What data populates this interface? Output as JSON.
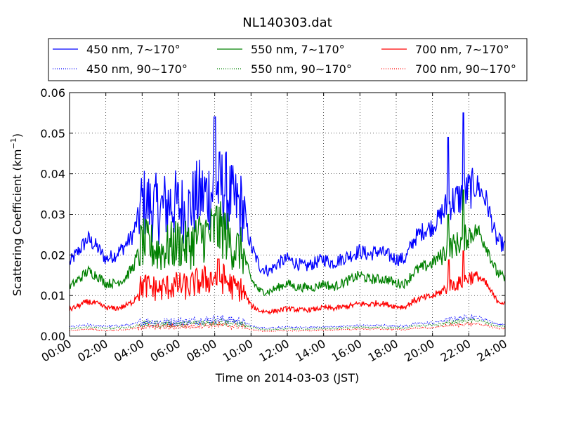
{
  "chart_data": {
    "type": "line",
    "title": "NL140303.dat",
    "xlabel": "Time on 2014-03-03 (JST)",
    "ylabel_main": "Scattering Coefficient (km",
    "ylabel_sup": "−1",
    "ylabel_end": ")",
    "xlim": [
      0,
      24
    ],
    "ylim": [
      0,
      0.06
    ],
    "x_ticks": [
      0,
      2,
      4,
      6,
      8,
      10,
      12,
      14,
      16,
      18,
      20,
      22,
      24
    ],
    "x_tick_labels": [
      "00:00",
      "02:00",
      "04:00",
      "06:00",
      "08:00",
      "10:00",
      "12:00",
      "14:00",
      "16:00",
      "18:00",
      "20:00",
      "22:00",
      "24:00"
    ],
    "y_ticks": [
      0,
      0.01,
      0.02,
      0.03,
      0.04,
      0.05,
      0.06
    ],
    "y_tick_labels": [
      "0.00",
      "0.01",
      "0.02",
      "0.03",
      "0.04",
      "0.05",
      "0.06"
    ],
    "grid": true,
    "legend_position": "top, above plot, 3 columns",
    "x": [
      0,
      0.5,
      1,
      1.5,
      2,
      2.5,
      3,
      3.5,
      4,
      4.5,
      5,
      5.5,
      6,
      6.5,
      7,
      7.5,
      8,
      8.5,
      9,
      9.5,
      10,
      10.5,
      11,
      11.5,
      12,
      12.5,
      13,
      13.5,
      14,
      14.5,
      15,
      15.5,
      16,
      16.5,
      17,
      17.5,
      18,
      18.5,
      19,
      19.5,
      20,
      20.5,
      21,
      21.5,
      22,
      22.5,
      23,
      23.5,
      24
    ],
    "series": [
      {
        "name": "450 nm, 7∼170°",
        "color": "#0000ff",
        "style": "solid",
        "values": [
          0.018,
          0.021,
          0.024,
          0.022,
          0.019,
          0.02,
          0.022,
          0.025,
          0.033,
          0.032,
          0.031,
          0.033,
          0.032,
          0.031,
          0.034,
          0.035,
          0.036,
          0.037,
          0.033,
          0.032,
          0.022,
          0.017,
          0.016,
          0.018,
          0.019,
          0.018,
          0.017,
          0.018,
          0.019,
          0.018,
          0.019,
          0.02,
          0.021,
          0.02,
          0.021,
          0.02,
          0.019,
          0.019,
          0.024,
          0.026,
          0.027,
          0.03,
          0.033,
          0.034,
          0.036,
          0.037,
          0.033,
          0.024,
          0.022
        ]
      },
      {
        "name": "450 nm, 90∼170°",
        "color": "#0000ff",
        "style": "dotted",
        "values": [
          0.0023,
          0.0025,
          0.0028,
          0.0026,
          0.0024,
          0.0025,
          0.0026,
          0.0029,
          0.0035,
          0.0036,
          0.0035,
          0.0036,
          0.0035,
          0.0036,
          0.0038,
          0.004,
          0.0042,
          0.0041,
          0.0038,
          0.0036,
          0.0026,
          0.002,
          0.002,
          0.0021,
          0.0022,
          0.0021,
          0.0021,
          0.0022,
          0.0023,
          0.0023,
          0.0024,
          0.0025,
          0.0026,
          0.0026,
          0.0027,
          0.0026,
          0.0025,
          0.0025,
          0.003,
          0.0032,
          0.0033,
          0.0037,
          0.0042,
          0.0044,
          0.0048,
          0.0046,
          0.004,
          0.003,
          0.0028
        ]
      },
      {
        "name": "550 nm, 7∼170°",
        "color": "#008000",
        "style": "solid",
        "values": [
          0.012,
          0.014,
          0.016,
          0.015,
          0.013,
          0.013,
          0.014,
          0.017,
          0.023,
          0.022,
          0.021,
          0.022,
          0.023,
          0.022,
          0.024,
          0.025,
          0.026,
          0.026,
          0.022,
          0.021,
          0.014,
          0.011,
          0.011,
          0.012,
          0.013,
          0.012,
          0.012,
          0.012,
          0.013,
          0.012,
          0.013,
          0.014,
          0.015,
          0.014,
          0.014,
          0.014,
          0.013,
          0.013,
          0.016,
          0.017,
          0.018,
          0.02,
          0.022,
          0.023,
          0.025,
          0.026,
          0.022,
          0.016,
          0.014
        ]
      },
      {
        "name": "550 nm, 90∼170°",
        "color": "#008000",
        "style": "dotted",
        "values": [
          0.0018,
          0.002,
          0.0022,
          0.0021,
          0.0019,
          0.002,
          0.0021,
          0.0023,
          0.003,
          0.003,
          0.0029,
          0.003,
          0.0029,
          0.003,
          0.0032,
          0.0033,
          0.0035,
          0.0034,
          0.0031,
          0.003,
          0.0021,
          0.0017,
          0.0016,
          0.0017,
          0.0018,
          0.0017,
          0.0017,
          0.0018,
          0.0019,
          0.0019,
          0.002,
          0.0021,
          0.0022,
          0.0021,
          0.0022,
          0.0021,
          0.002,
          0.002,
          0.0025,
          0.0026,
          0.0027,
          0.003,
          0.0034,
          0.0036,
          0.0039,
          0.0038,
          0.0033,
          0.0025,
          0.0023
        ]
      },
      {
        "name": "700 nm, 7∼170°",
        "color": "#ff0000",
        "style": "solid",
        "values": [
          0.0065,
          0.0075,
          0.0085,
          0.008,
          0.007,
          0.0068,
          0.0073,
          0.0085,
          0.0125,
          0.012,
          0.0115,
          0.0122,
          0.0125,
          0.012,
          0.0132,
          0.0138,
          0.0145,
          0.0142,
          0.012,
          0.0115,
          0.0075,
          0.0062,
          0.006,
          0.0063,
          0.0068,
          0.0065,
          0.0064,
          0.0066,
          0.007,
          0.0068,
          0.0071,
          0.0075,
          0.008,
          0.0078,
          0.0082,
          0.0078,
          0.0073,
          0.0072,
          0.0088,
          0.0094,
          0.0098,
          0.011,
          0.0125,
          0.013,
          0.0145,
          0.0148,
          0.0125,
          0.009,
          0.008
        ]
      },
      {
        "name": "700 nm, 90∼170°",
        "color": "#ff0000",
        "style": "dotted",
        "values": [
          0.0013,
          0.0015,
          0.0017,
          0.0016,
          0.0014,
          0.0015,
          0.0016,
          0.0018,
          0.0023,
          0.0023,
          0.0022,
          0.0023,
          0.0023,
          0.0024,
          0.0025,
          0.0026,
          0.0027,
          0.0026,
          0.0024,
          0.0023,
          0.0016,
          0.0013,
          0.0012,
          0.0013,
          0.0014,
          0.0013,
          0.0013,
          0.0014,
          0.0015,
          0.0015,
          0.0016,
          0.0016,
          0.0017,
          0.0017,
          0.0018,
          0.0017,
          0.0016,
          0.0016,
          0.0019,
          0.002,
          0.0021,
          0.0024,
          0.0027,
          0.0028,
          0.003,
          0.003,
          0.0026,
          0.002,
          0.0018
        ]
      }
    ],
    "spikes": [
      {
        "series": 0,
        "x": 8.0,
        "y": 0.054
      },
      {
        "series": 0,
        "x": 20.85,
        "y": 0.049
      },
      {
        "series": 0,
        "x": 21.7,
        "y": 0.055
      },
      {
        "series": 2,
        "x": 8.1,
        "y": 0.032
      },
      {
        "series": 2,
        "x": 20.85,
        "y": 0.03
      },
      {
        "series": 2,
        "x": 21.7,
        "y": 0.036
      },
      {
        "series": 4,
        "x": 8.2,
        "y": 0.019
      },
      {
        "series": 4,
        "x": 20.9,
        "y": 0.0188
      },
      {
        "series": 4,
        "x": 21.7,
        "y": 0.021
      }
    ]
  }
}
